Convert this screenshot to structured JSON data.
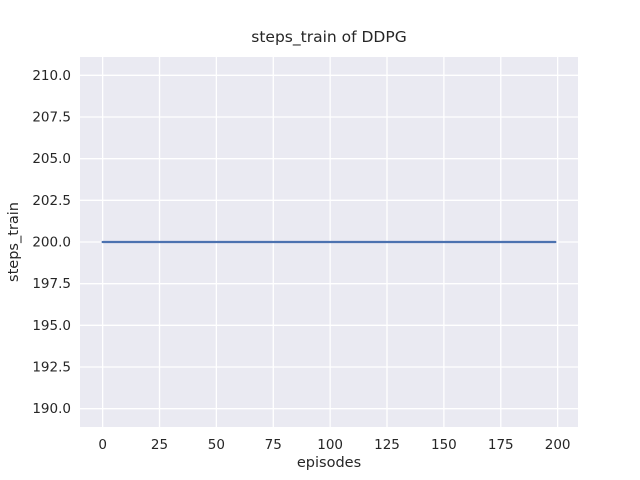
{
  "chart_data": {
    "type": "line",
    "title": "steps_train of DDPG",
    "xlabel": "episodes",
    "ylabel": "steps_train",
    "xlim": [
      -9.95,
      208.95
    ],
    "ylim": [
      188.9,
      211.1
    ],
    "xtick_values": [
      0,
      25,
      50,
      75,
      100,
      125,
      150,
      175,
      200
    ],
    "xtick_labels": [
      "0",
      "25",
      "50",
      "75",
      "100",
      "125",
      "150",
      "175",
      "200"
    ],
    "ytick_values": [
      190,
      192.5,
      195,
      197.5,
      200,
      202.5,
      205,
      207.5,
      210
    ],
    "ytick_labels": [
      "190.0",
      "192.5",
      "195.0",
      "197.5",
      "200.0",
      "202.5",
      "205.0",
      "207.5",
      "210.0"
    ],
    "grid": true,
    "legend_position": "none",
    "series": [
      {
        "name": "steps_train",
        "x_range": [
          0,
          199
        ],
        "y_constant": 200
      }
    ],
    "colors": {
      "figure_bg": "#FFFFFF",
      "plot_bg": "#EAEAF2",
      "grid": "#FFFFFF",
      "line": "#4C72B0",
      "text": "#262626"
    }
  }
}
